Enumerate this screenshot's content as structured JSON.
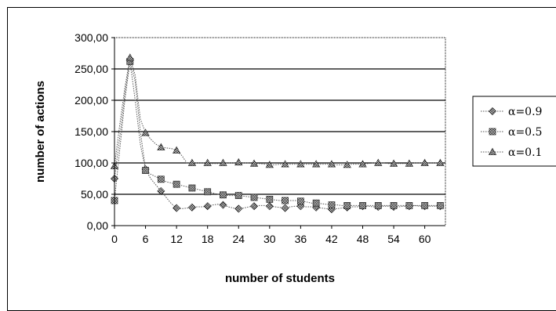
{
  "chart_data": {
    "type": "line",
    "title": "",
    "xlabel": "number of students",
    "ylabel": "number of actions",
    "xlim": [
      0,
      64
    ],
    "ylim": [
      0,
      300
    ],
    "x_ticks": [
      "0",
      "6",
      "12",
      "18",
      "24",
      "30",
      "36",
      "42",
      "48",
      "54",
      "60"
    ],
    "x_tick_values": [
      0,
      6,
      12,
      18,
      24,
      30,
      36,
      42,
      48,
      54,
      60
    ],
    "y_ticks": [
      "0,00",
      "50,00",
      "100,00",
      "150,00",
      "200,00",
      "250,00",
      "300,00"
    ],
    "y_tick_values": [
      0,
      50,
      100,
      150,
      200,
      250,
      300
    ],
    "grid": "horizontal",
    "legend_position": "right",
    "colors": {
      "line": "#555555",
      "grid": "#000000",
      "marker_fill": "#9a9a9a"
    },
    "series": [
      {
        "name": "α=0.9",
        "marker": "diamond",
        "x": [
          0,
          1,
          2,
          3,
          4,
          5,
          6,
          7,
          8,
          9,
          10,
          11,
          12,
          13,
          14,
          15,
          16,
          17,
          18,
          19,
          20,
          21,
          22,
          23,
          24,
          25,
          26,
          27,
          28,
          29,
          30,
          31,
          32,
          33,
          34,
          35,
          36,
          37,
          38,
          39,
          40,
          41,
          42,
          43,
          44,
          45,
          46,
          47,
          48,
          49,
          50,
          51,
          52,
          53,
          54,
          55,
          56,
          57,
          58,
          59,
          60,
          61,
          62,
          63
        ],
        "values": [
          75,
          140,
          210,
          265,
          230,
          150,
          90,
          75,
          65,
          55,
          45,
          35,
          28,
          27,
          28,
          29,
          30,
          30,
          31,
          33,
          34,
          33,
          30,
          28,
          27,
          28,
          30,
          31,
          32,
          32,
          31,
          30,
          29,
          28,
          30,
          31,
          31,
          30,
          30,
          29,
          28,
          27,
          26,
          27,
          28,
          29,
          30,
          30,
          31,
          31,
          30,
          30,
          31,
          31,
          30,
          30,
          31,
          31,
          32,
          31,
          31,
          31,
          31,
          31
        ]
      },
      {
        "name": "α=0.5",
        "marker": "square",
        "x": [
          0,
          1,
          2,
          3,
          4,
          5,
          6,
          7,
          8,
          9,
          10,
          11,
          12,
          13,
          14,
          15,
          16,
          17,
          18,
          19,
          20,
          21,
          22,
          23,
          24,
          25,
          26,
          27,
          28,
          29,
          30,
          31,
          32,
          33,
          34,
          35,
          36,
          37,
          38,
          39,
          40,
          41,
          42,
          43,
          44,
          45,
          46,
          47,
          48,
          49,
          50,
          51,
          52,
          53,
          54,
          55,
          56,
          57,
          58,
          59,
          60,
          61,
          62,
          63
        ],
        "values": [
          40,
          120,
          200,
          262,
          200,
          130,
          88,
          82,
          78,
          74,
          70,
          68,
          66,
          64,
          62,
          60,
          58,
          56,
          54,
          52,
          50,
          49,
          48,
          48,
          48,
          47,
          46,
          45,
          44,
          43,
          42,
          41,
          40,
          40,
          40,
          40,
          39,
          38,
          36,
          36,
          35,
          34,
          33,
          33,
          32,
          32,
          32,
          32,
          32,
          32,
          32,
          32,
          32,
          32,
          32,
          32,
          32,
          32,
          32,
          32,
          32,
          32,
          32,
          32
        ]
      },
      {
        "name": "α=0.1",
        "marker": "triangle",
        "x": [
          0,
          1,
          2,
          3,
          4,
          5,
          6,
          7,
          8,
          9,
          10,
          11,
          12,
          13,
          14,
          15,
          16,
          17,
          18,
          19,
          20,
          21,
          22,
          23,
          24,
          25,
          26,
          27,
          28,
          29,
          30,
          31,
          32,
          33,
          34,
          35,
          36,
          37,
          38,
          39,
          40,
          41,
          42,
          43,
          44,
          45,
          46,
          47,
          48,
          49,
          50,
          51,
          52,
          53,
          54,
          55,
          56,
          57,
          58,
          59,
          60,
          61,
          62,
          63
        ],
        "values": [
          95,
          160,
          220,
          268,
          240,
          170,
          148,
          138,
          130,
          125,
          124,
          123,
          120,
          112,
          100,
          100,
          100,
          100,
          100,
          99,
          99,
          100,
          100,
          100,
          101,
          100,
          100,
          99,
          99,
          98,
          97,
          97,
          98,
          98,
          98,
          98,
          98,
          98,
          98,
          98,
          98,
          98,
          98,
          97,
          97,
          97,
          98,
          98,
          98,
          99,
          100,
          100,
          100,
          99,
          99,
          99,
          99,
          99,
          100,
          100,
          100,
          100,
          100,
          100
        ]
      }
    ]
  }
}
